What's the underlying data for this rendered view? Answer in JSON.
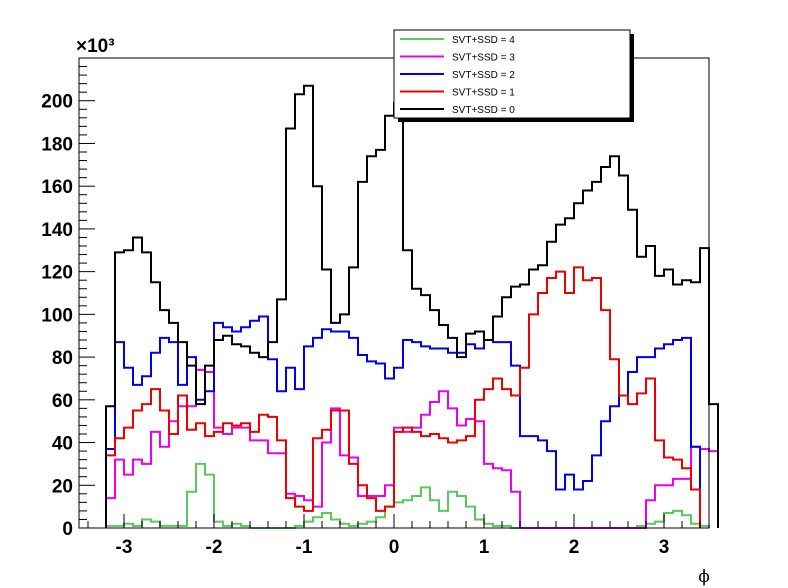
{
  "chart_data": {
    "type": "line",
    "drawstyle": "step-histogram",
    "xlabel": "ϕ",
    "ylabel": "",
    "y_multiplier_label": "×10³",
    "xlim": [
      -3.5,
      3.5
    ],
    "ylim": [
      0,
      220
    ],
    "xticks": [
      -3,
      -2,
      -1,
      0,
      1,
      2,
      3
    ],
    "yticks": [
      0,
      20,
      40,
      60,
      80,
      100,
      120,
      140,
      160,
      180,
      200
    ],
    "legend_position": "top-right",
    "grid": false,
    "bin_edges_start": -3.2,
    "bin_width": 0.1,
    "series": [
      {
        "name": "SVT+SSD = 4",
        "color": "#5ac85a",
        "values": [
          1,
          1,
          2,
          1,
          4,
          3,
          1,
          1,
          1,
          17,
          30,
          25,
          3,
          1,
          2,
          1,
          0,
          0,
          0,
          0,
          0,
          1,
          3,
          5,
          7,
          4,
          2,
          1,
          2,
          3,
          5,
          10,
          12,
          13,
          15,
          19,
          13,
          8,
          17,
          15,
          10,
          4,
          2,
          1,
          1,
          0,
          0,
          0,
          0,
          0,
          0,
          0,
          0,
          0,
          0,
          0,
          0,
          0,
          0,
          1,
          2,
          3,
          7,
          8,
          6,
          2,
          1
        ]
      },
      {
        "name": "SVT+SSD = 3",
        "color": "#ee00ee",
        "values": [
          14,
          32,
          25,
          32,
          30,
          45,
          38,
          50,
          57,
          57,
          74,
          73,
          47,
          44,
          47,
          47,
          41,
          41,
          35,
          35,
          16,
          15,
          13,
          10,
          40,
          56,
          34,
          33,
          15,
          15,
          15,
          20,
          47,
          45,
          47,
          53,
          59,
          64,
          56,
          48,
          51,
          50,
          30,
          28,
          27,
          17,
          0,
          0,
          0,
          0,
          0,
          0,
          0,
          0,
          0,
          0,
          0,
          0,
          0,
          0,
          13,
          20,
          20,
          23,
          23,
          38,
          37,
          36
        ]
      },
      {
        "name": "SVT+SSD = 2",
        "color": "#0000ee",
        "values": [
          37,
          87,
          75,
          67,
          71,
          82,
          89,
          87,
          67,
          80,
          60,
          64,
          96,
          94,
          92,
          94,
          97,
          99,
          79,
          64,
          75,
          65,
          85,
          89,
          93,
          92,
          92,
          89,
          81,
          78,
          77,
          70,
          75,
          88,
          87,
          85,
          84,
          84,
          82,
          82,
          86,
          84,
          88,
          87,
          87,
          76,
          43,
          43,
          41,
          36,
          18,
          25,
          18,
          22,
          34,
          50,
          57,
          62,
          73,
          80,
          80,
          84,
          86,
          88,
          89,
          38
        ]
      },
      {
        "name": "SVT+SSD = 1",
        "color": "#ee0000",
        "values": [
          34,
          42,
          47,
          55,
          58,
          65,
          55,
          44,
          62,
          46,
          49,
          43,
          45,
          49,
          48,
          49,
          45,
          53,
          52,
          41,
          14,
          10,
          8,
          42,
          46,
          55,
          55,
          30,
          20,
          14,
          8,
          10,
          45,
          47,
          45,
          43,
          44,
          42,
          40,
          41,
          43,
          60,
          65,
          70,
          65,
          62,
          75,
          100,
          110,
          117,
          120,
          110,
          122,
          116,
          117,
          102,
          79,
          62,
          58,
          63,
          70,
          41,
          33,
          32,
          28,
          18
        ]
      },
      {
        "name": "SVT+SSD = 0",
        "color": "#000000",
        "values": [
          57,
          129,
          130,
          136,
          129,
          115,
          102,
          96,
          87,
          76,
          58,
          76,
          88,
          90,
          86,
          85,
          82,
          80,
          87,
          107,
          187,
          203,
          207,
          160,
          121,
          96,
          100,
          122,
          162,
          174,
          177,
          193,
          199,
          130,
          112,
          109,
          102,
          95,
          89,
          80,
          91,
          92,
          88,
          99,
          108,
          113,
          114,
          121,
          123,
          134,
          142,
          145,
          152,
          158,
          162,
          169,
          174,
          165,
          149,
          127,
          132,
          118,
          121,
          114,
          116,
          115,
          131,
          58
        ]
      }
    ]
  }
}
